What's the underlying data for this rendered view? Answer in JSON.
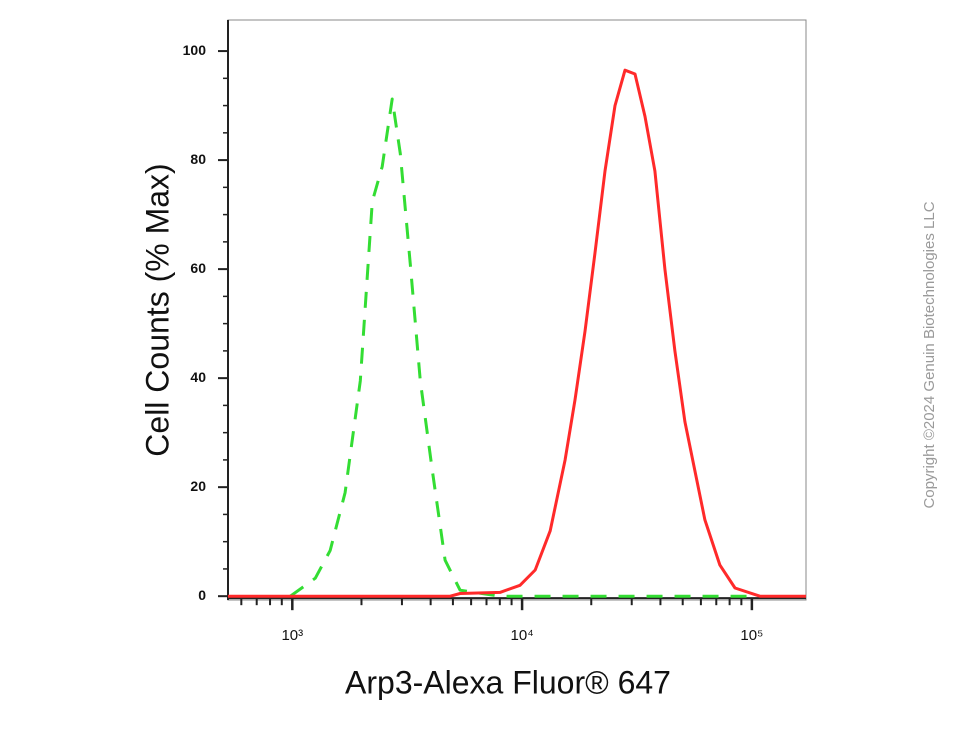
{
  "chart_data": {
    "type": "line",
    "x_label": "Arp3-Alexa Fluor® 647",
    "y_label": "Cell Counts (% Max)",
    "annotation": "Copyright ©2024 Genuin Biotechnologies LLC",
    "xlog": true,
    "xlim": [
      525,
      172000
    ],
    "ylim": [
      -0.7,
      105.7
    ],
    "xticks": [
      {
        "value": 1000,
        "label": "10³"
      },
      {
        "value": 10000,
        "label": "10⁴"
      },
      {
        "value": 100000,
        "label": "10⁵"
      }
    ],
    "xminor_ticks": [
      600,
      700,
      800,
      900,
      2000,
      3000,
      4000,
      5000,
      6000,
      7000,
      8000,
      9000,
      20000,
      30000,
      40000,
      50000,
      60000,
      70000,
      80000,
      90000
    ],
    "yticks": [
      0,
      20,
      40,
      60,
      80,
      100
    ],
    "yminor_ticks": [
      5,
      10,
      15,
      25,
      30,
      35,
      45,
      50,
      55,
      65,
      70,
      75,
      85,
      90,
      95
    ],
    "series": [
      {
        "color": "#33dd33",
        "dashed": true,
        "x": [
          980,
          1259,
          1462,
          1698,
          1977,
          2228,
          2462,
          2722,
          2951,
          3260,
          3606,
          4064,
          4624,
          5375,
          8013,
          21800,
          97900
        ],
        "values": [
          0,
          3.3,
          8.4,
          19,
          39.5,
          72.4,
          78.8,
          91.2,
          81.2,
          61.1,
          39.5,
          23.2,
          6.6,
          1.1,
          0,
          0,
          0
        ]
      },
      {
        "color": "#ff2a2a",
        "dashed": false,
        "x": [
          525,
          4864,
          5375,
          8013,
          9795,
          11400,
          13250,
          15380,
          17000,
          18790,
          20760,
          22950,
          25360,
          28040,
          30990,
          34260,
          37860,
          41850,
          46260,
          51130,
          56510,
          62460,
          72610,
          84420,
          108400,
          172000
        ],
        "values": [
          0,
          0,
          0.5,
          0.7,
          2,
          4.8,
          12,
          25,
          36,
          48.6,
          63,
          78,
          90,
          96.5,
          95.8,
          88,
          78,
          60,
          45,
          32,
          23,
          14,
          5.7,
          1.5,
          0,
          0
        ]
      }
    ]
  }
}
